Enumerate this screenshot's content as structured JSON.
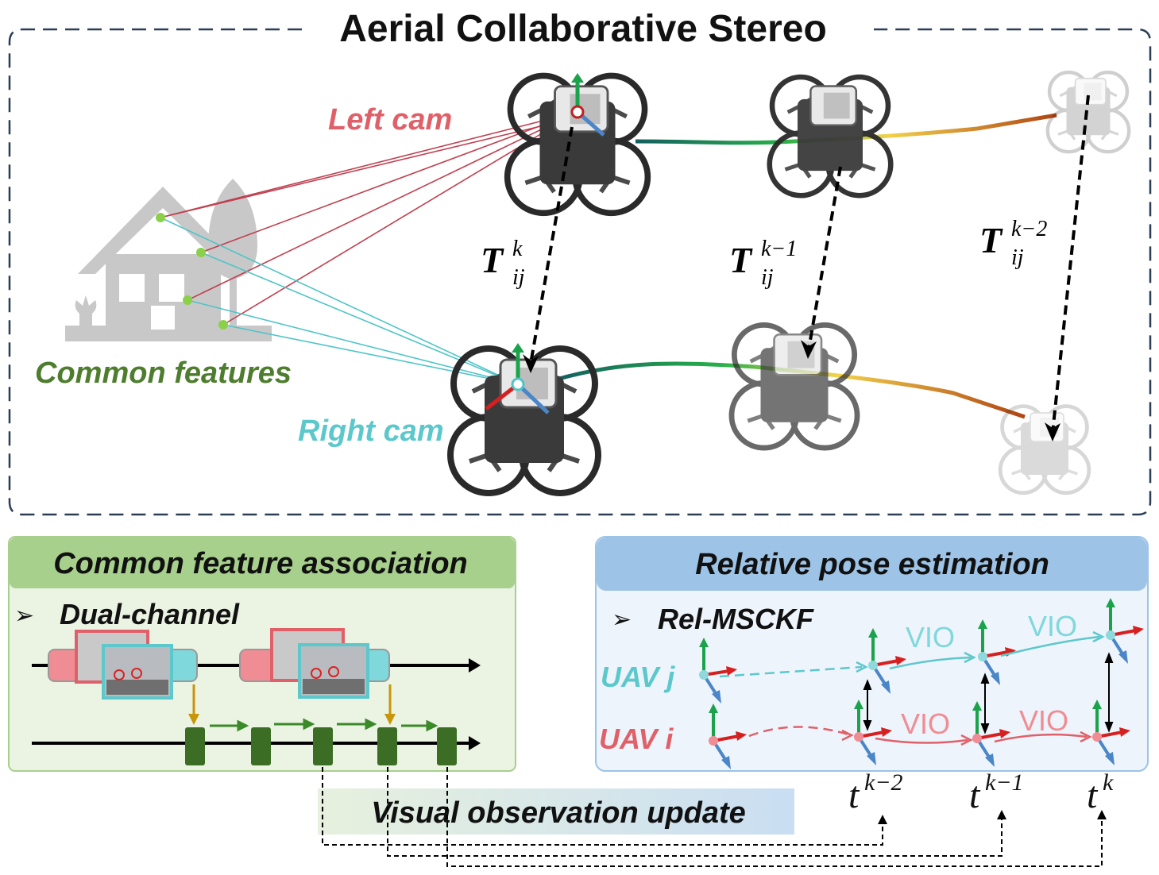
{
  "title": "Aerial Collaborative Stereo",
  "top_panel": {
    "left_cam": "Left cam",
    "right_cam": "Right cam",
    "common_features": "Common features",
    "transforms": [
      {
        "base": "T",
        "sub": "ij",
        "sup": "k"
      },
      {
        "base": "T",
        "sub": "ij",
        "sup": "k−1"
      },
      {
        "base": "T",
        "sub": "ij",
        "sup": "k−2"
      }
    ]
  },
  "association_panel": {
    "title": "Common feature association",
    "bullet_marker": "➢",
    "bullet": "Dual-channel"
  },
  "pose_panel": {
    "title": "Relative pose estimation",
    "bullet_marker": "➢",
    "bullet": "Rel-MSCKF",
    "uav_j": "UAV j",
    "uav_i": "UAV i",
    "vio_label": "VIO"
  },
  "update_label": "Visual observation update",
  "time_labels": [
    {
      "base": "t",
      "sup": "k−2"
    },
    {
      "base": "t",
      "sup": "k−1"
    },
    {
      "base": "t",
      "sup": "k"
    }
  ],
  "colors": {
    "left_cam": "#e0606a",
    "right_cam": "#5cc8cc",
    "feature_green": "#4e7d2e",
    "feature_dot": "#8bd04a",
    "panel_green_header": "#a8d08d",
    "panel_green_body": "#ebf3e3",
    "panel_blue_header": "#9dc3e6",
    "panel_blue_body": "#eef4fb",
    "axis_green": "#1aa34a",
    "axis_red": "#d62020",
    "axis_blue": "#4a86c8",
    "keyframe_green": "#3b6e24",
    "connector_gold": "#c8960a"
  }
}
